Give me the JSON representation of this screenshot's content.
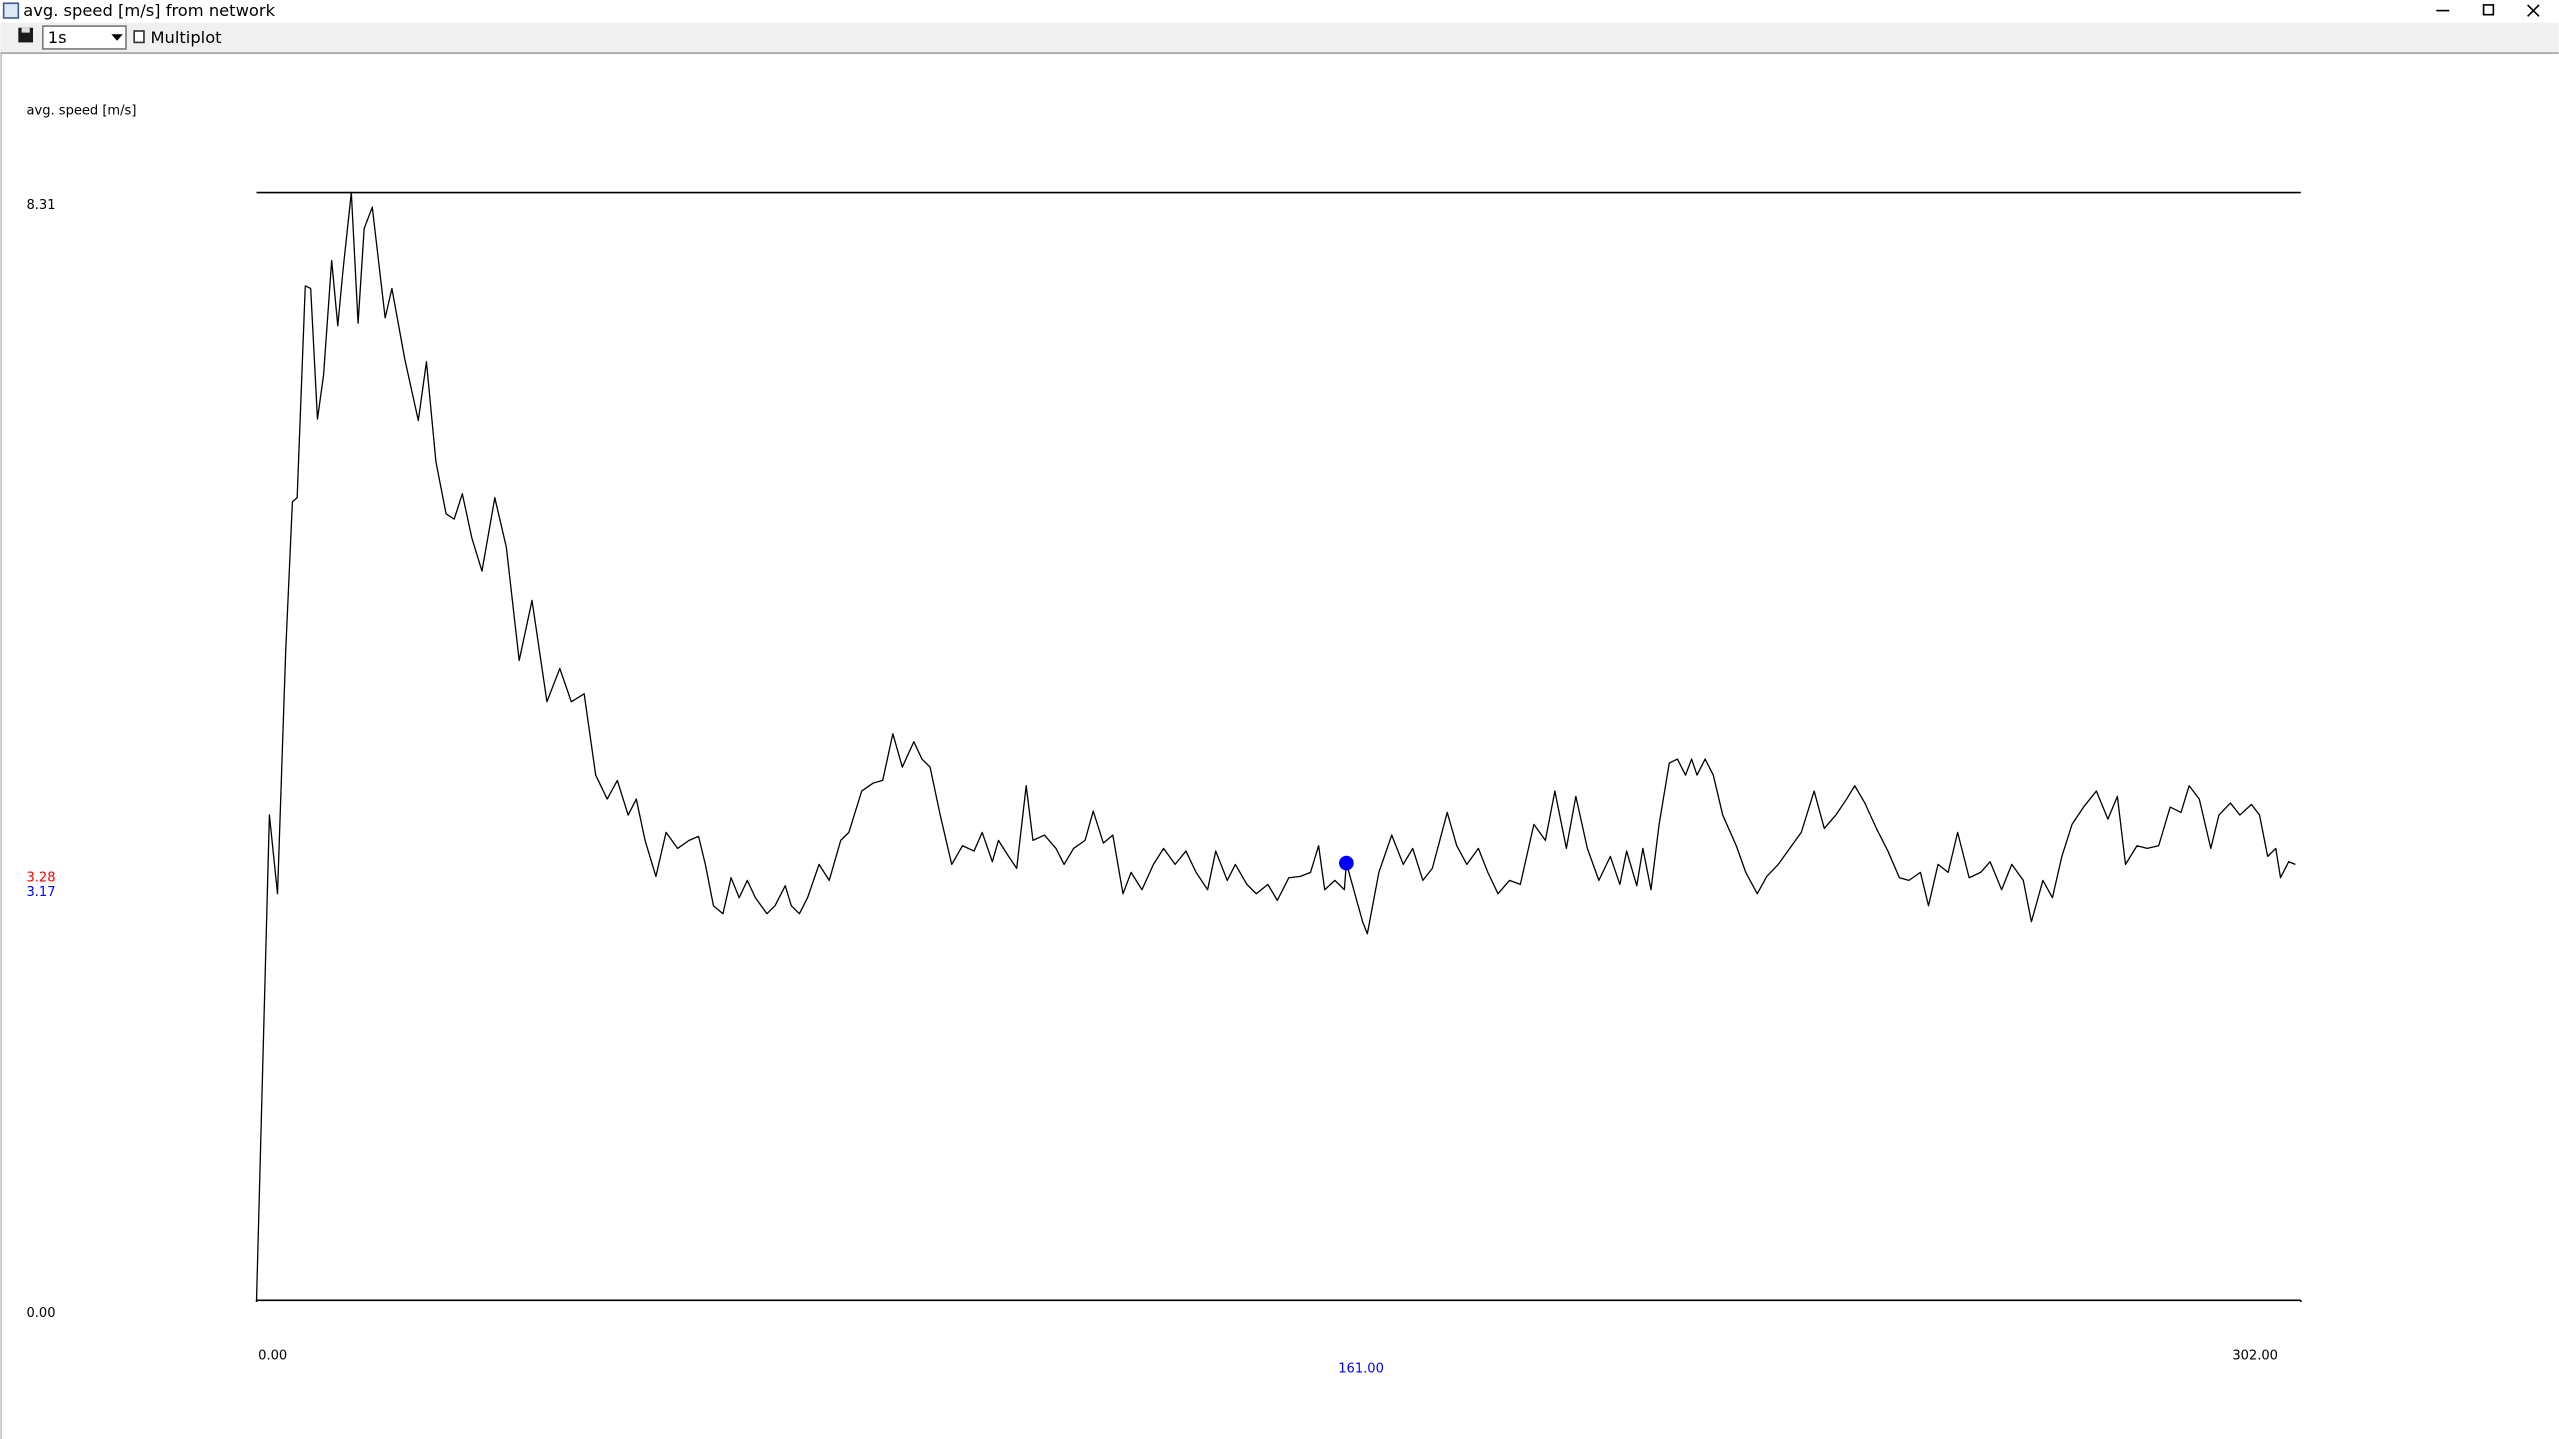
{
  "window": {
    "title": "avg. speed [m/s] from network"
  },
  "toolbar": {
    "interval": "1s",
    "multiplot": "Multiplot"
  },
  "chart_data": {
    "type": "line",
    "ylabel": "avg. speed [m/s]",
    "xlim": [
      0,
      302
    ],
    "ylim": [
      0,
      8.31
    ],
    "xticks": [
      {
        "value": 0,
        "label": "0.00"
      },
      {
        "value": 302,
        "label": "302.00"
      }
    ],
    "yticks": [
      {
        "value": 0,
        "label": "0.00"
      },
      8.31
    ],
    "grid": true,
    "x": [
      0,
      1.9,
      3.1,
      4.3,
      5.3,
      6.0,
      7.2,
      8.0,
      9.0,
      9.9,
      11.1,
      12.0,
      12.8,
      14.0,
      15.0,
      15.9,
      17.1,
      19.0,
      20.0,
      21.9,
      23.9,
      25.1,
      26.5,
      28.0,
      29.2,
      30.4,
      31.8,
      33.3,
      35.2,
      36.9,
      38.8,
      40.7,
      42.9,
      44.8,
      46.5,
      48.4,
      50.1,
      51.8,
      53.3,
      54.9,
      56.1,
      57.4,
      59.0,
      60.5,
      62.2,
      63.9,
      65.3,
      66.3,
      67.5,
      68.9,
      70.1,
      71.3,
      72.5,
      73.7,
      75.4,
      76.6,
      78.1,
      79.0,
      80.2,
      81.4,
      83.1,
      84.6,
      86.3,
      87.5,
      89.4,
      91.1,
      92.5,
      94.0,
      95.4,
      97.1,
      98.3,
      99.5,
      101.0,
      102.7,
      104.3,
      106.0,
      107.2,
      108.7,
      109.6,
      111.1,
      112.3,
      113.7,
      114.7,
      116.4,
      118.1,
      119.3,
      120.7,
      122.4,
      123.6,
      125.1,
      126.5,
      128.0,
      129.2,
      130.8,
      132.5,
      134.0,
      135.7,
      137.3,
      138.8,
      140.5,
      141.7,
      143.4,
      144.6,
      146.3,
      147.7,
      149.4,
      150.8,
      152.5,
      154.2,
      155.7,
      156.9,
      157.8,
      159.3,
      160.7,
      161,
      163.4,
      164.1,
      165.8,
      167.7,
      169.4,
      170.8,
      172.3,
      173.7,
      175.9,
      177.3,
      178.8,
      180.5,
      181.9,
      183.4,
      185.1,
      186.7,
      188.7,
      190.4,
      191.8,
      193.5,
      194.9,
      196.6,
      198.3,
      200.0,
      201.4,
      202.4,
      203.9,
      204.8,
      206.0,
      207.2,
      208.7,
      209.9,
      211.1,
      212.0,
      212.8,
      214.0,
      215.2,
      216.6,
      218.6,
      220.0,
      221.7,
      223.1,
      224.8,
      226.5,
      228.2,
      230.1,
      231.6,
      233.3,
      234.9,
      236.1,
      237.6,
      239.3,
      241.0,
      242.7,
      244.1,
      245.8,
      247.0,
      248.4,
      249.9,
      251.3,
      253.0,
      254.7,
      256.1,
      257.8,
      259.3,
      261.0,
      262.2,
      263.9,
      265.3,
      266.7,
      268.2,
      269.9,
      271.8,
      273.5,
      274.9,
      276.1,
      277.8,
      279.3,
      281.0,
      282.7,
      284.3,
      285.5,
      287.0,
      288.7,
      289.9,
      291.6,
      293.0,
      294.7,
      295.9,
      297.1,
      298.3,
      299.0,
      300.2,
      301.2
    ],
    "series": [
      {
        "color": "#000000",
        "values": [
          0,
          3.64,
          3.05,
          4.86,
          5.99,
          6.02,
          7.61,
          7.59,
          6.61,
          6.94,
          7.8,
          7.31,
          7.74,
          8.31,
          7.33,
          8.04,
          8.2,
          7.37,
          7.59,
          7.06,
          6.6,
          7.04,
          6.29,
          5.9,
          5.86,
          6.05,
          5.72,
          5.47,
          6.02,
          5.65,
          4.8,
          5.25,
          4.49,
          4.74,
          4.49,
          4.55,
          3.94,
          3.76,
          3.9,
          3.64,
          3.76,
          3.45,
          3.18,
          3.51,
          3.39,
          3.45,
          3.48,
          3.27,
          2.96,
          2.9,
          3.17,
          3.02,
          3.15,
          3.02,
          2.9,
          2.96,
          3.11,
          2.96,
          2.9,
          3.02,
          3.27,
          3.15,
          3.45,
          3.51,
          3.82,
          3.88,
          3.9,
          4.25,
          4.0,
          4.19,
          4.06,
          4.0,
          3.64,
          3.27,
          3.41,
          3.37,
          3.51,
          3.29,
          3.45,
          3.33,
          3.24,
          3.86,
          3.45,
          3.49,
          3.39,
          3.27,
          3.39,
          3.45,
          3.67,
          3.43,
          3.49,
          3.05,
          3.21,
          3.08,
          3.27,
          3.39,
          3.27,
          3.37,
          3.21,
          3.08,
          3.37,
          3.15,
          3.27,
          3.12,
          3.05,
          3.12,
          3.0,
          3.17,
          3.18,
          3.21,
          3.41,
          3.08,
          3.15,
          3.08,
          3.28,
          2.84,
          2.75,
          3.21,
          3.49,
          3.27,
          3.39,
          3.15,
          3.24,
          3.66,
          3.41,
          3.27,
          3.39,
          3.21,
          3.05,
          3.15,
          3.12,
          3.57,
          3.45,
          3.82,
          3.39,
          3.78,
          3.39,
          3.15,
          3.33,
          3.12,
          3.37,
          3.11,
          3.39,
          3.08,
          3.57,
          4.03,
          4.06,
          3.94,
          4.06,
          3.94,
          4.06,
          3.94,
          3.64,
          3.41,
          3.21,
          3.05,
          3.18,
          3.27,
          3.39,
          3.51,
          3.82,
          3.54,
          3.64,
          3.76,
          3.86,
          3.73,
          3.54,
          3.37,
          3.17,
          3.15,
          3.21,
          2.96,
          3.27,
          3.21,
          3.51,
          3.17,
          3.21,
          3.29,
          3.08,
          3.27,
          3.15,
          2.84,
          3.15,
          3.02,
          3.33,
          3.57,
          3.7,
          3.82,
          3.61,
          3.78,
          3.27,
          3.41,
          3.39,
          3.41,
          3.7,
          3.66,
          3.86,
          3.76,
          3.39,
          3.64,
          3.73,
          3.64,
          3.72,
          3.64,
          3.33,
          3.39,
          3.17,
          3.29,
          3.27
        ]
      }
    ],
    "readout": {
      "x": {
        "value": 161,
        "label": "161.00"
      },
      "y": 3.28,
      "y_avg": 3.17,
      "marker_color": "#0000ff",
      "y_color": "#ff0000",
      "y_avg_color": "#0000ff",
      "x_color": "#0000ff"
    }
  }
}
